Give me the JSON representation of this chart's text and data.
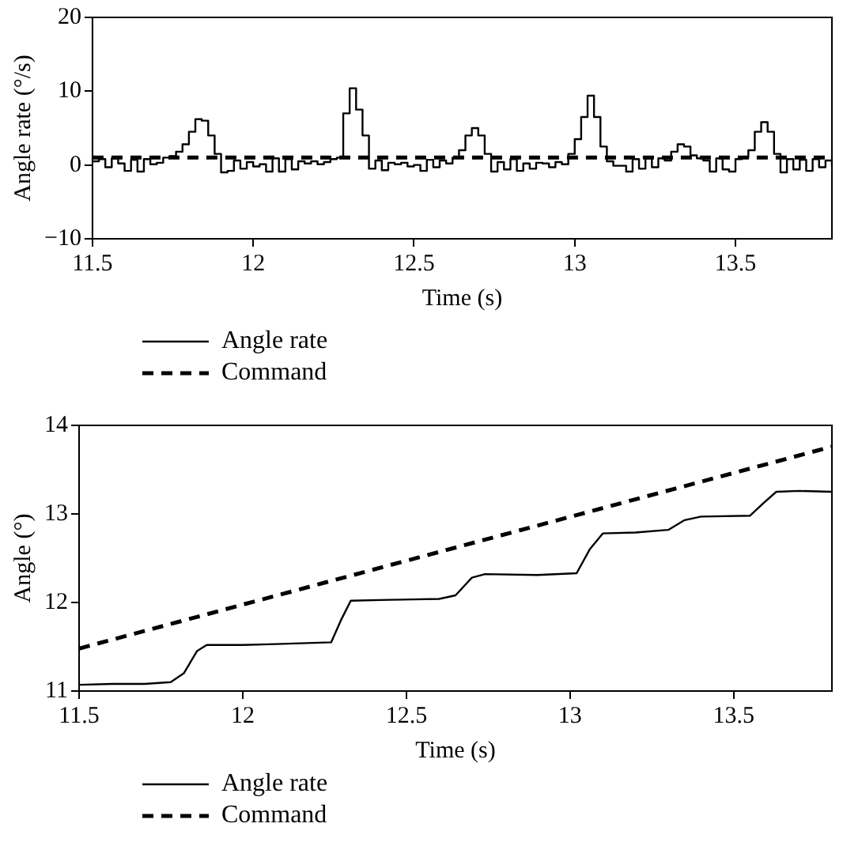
{
  "chart_data": [
    {
      "type": "step",
      "xlabel": "Time (s)",
      "ylabel": "Angle rate (°/s)",
      "xlim": [
        11.5,
        13.8
      ],
      "xticks": [
        11.5,
        12,
        12.5,
        13,
        13.5
      ],
      "ylim": [
        -10,
        20
      ],
      "yticks": [
        {
          "value": -10,
          "label": "−10"
        },
        0,
        10,
        20
      ],
      "grid": false,
      "legend": "bottom",
      "series": [
        {
          "name": "Angle rate",
          "color": "#000000",
          "line_style": "solid",
          "x": [
            11.5,
            11.52,
            11.54,
            11.56,
            11.58,
            11.6,
            11.62,
            11.64,
            11.66,
            11.68,
            11.7,
            11.72,
            11.74,
            11.76,
            11.78,
            11.8,
            11.82,
            11.84,
            11.86,
            11.88,
            11.9,
            11.92,
            11.94,
            11.96,
            11.98,
            12.0,
            12.02,
            12.04,
            12.06,
            12.08,
            12.1,
            12.12,
            12.14,
            12.16,
            12.18,
            12.2,
            12.22,
            12.24,
            12.26,
            12.28,
            12.3,
            12.32,
            12.34,
            12.36,
            12.38,
            12.4,
            12.42,
            12.44,
            12.46,
            12.48,
            12.5,
            12.52,
            12.54,
            12.56,
            12.58,
            12.6,
            12.62,
            12.64,
            12.66,
            12.68,
            12.7,
            12.72,
            12.74,
            12.76,
            12.78,
            12.8,
            12.82,
            12.84,
            12.86,
            12.88,
            12.9,
            12.92,
            12.94,
            12.96,
            12.98,
            13.0,
            13.02,
            13.04,
            13.06,
            13.08,
            13.1,
            13.12,
            13.14,
            13.16,
            13.18,
            13.2,
            13.22,
            13.24,
            13.26,
            13.28,
            13.3,
            13.32,
            13.34,
            13.36,
            13.38,
            13.4,
            13.42,
            13.44,
            13.46,
            13.48,
            13.5,
            13.52,
            13.54,
            13.56,
            13.58,
            13.6,
            13.62,
            13.64,
            13.66,
            13.68,
            13.7,
            13.72,
            13.74,
            13.76,
            13.78,
            13.8
          ],
          "values": [
            0.5,
            0.8,
            -0.3,
            0.9,
            0.2,
            -0.8,
            0.7,
            -0.9,
            0.8,
            0.1,
            0.3,
            1.0,
            1.2,
            1.8,
            2.8,
            4.5,
            6.2,
            6.0,
            4.0,
            1.5,
            -1.0,
            -0.8,
            0.6,
            -0.5,
            0.4,
            -0.2,
            0.1,
            -0.9,
            0.9,
            -0.9,
            0.8,
            -0.6,
            0.5,
            0.2,
            0.5,
            0.1,
            0.4,
            0.8,
            1.0,
            7.0,
            10.4,
            7.5,
            4.0,
            -0.5,
            0.6,
            -0.7,
            0.3,
            0.1,
            0.3,
            -0.2,
            0.0,
            -0.8,
            0.7,
            -0.3,
            0.6,
            0.2,
            1.0,
            2.0,
            4.0,
            5.0,
            4.0,
            1.5,
            -0.9,
            0.4,
            -0.6,
            0.8,
            -0.8,
            0.2,
            -0.5,
            0.3,
            0.2,
            -0.3,
            0.4,
            0.1,
            1.5,
            3.5,
            6.5,
            9.4,
            6.5,
            2.5,
            0.5,
            -0.1,
            -0.1,
            -0.9,
            0.8,
            -0.5,
            0.9,
            -0.3,
            0.9,
            0.6,
            1.8,
            2.8,
            2.5,
            1.3,
            0.9,
            0.6,
            -0.9,
            0.9,
            -0.6,
            -0.9,
            0.8,
            1.0,
            2.0,
            4.5,
            5.8,
            4.5,
            1.5,
            -1.0,
            0.8,
            -0.6,
            0.7,
            -0.8,
            0.8,
            -0.3,
            0.6,
            -0.2
          ]
        },
        {
          "name": "Command",
          "type": "line",
          "color": "#000000",
          "line_style": "dashed",
          "x": [
            11.5,
            13.8
          ],
          "values": [
            1,
            1
          ]
        }
      ]
    },
    {
      "type": "line",
      "xlabel": "Time (s)",
      "ylabel": "Angle (°)",
      "xlim": [
        11.5,
        13.8
      ],
      "xticks": [
        11.5,
        12,
        12.5,
        13,
        13.5
      ],
      "ylim": [
        11,
        14
      ],
      "yticks": [
        11,
        12,
        13,
        14
      ],
      "grid": false,
      "legend": "bottom",
      "series": [
        {
          "name": "Angle rate",
          "color": "#000000",
          "line_style": "solid",
          "x": [
            11.5,
            11.6,
            11.7,
            11.78,
            11.82,
            11.86,
            11.89,
            12.0,
            12.1,
            12.27,
            12.3,
            12.33,
            12.45,
            12.6,
            12.65,
            12.7,
            12.74,
            12.9,
            13.02,
            13.06,
            13.1,
            13.2,
            13.3,
            13.35,
            13.4,
            13.55,
            13.59,
            13.63,
            13.7,
            13.8
          ],
          "values": [
            11.07,
            11.08,
            11.08,
            11.1,
            11.2,
            11.45,
            11.52,
            11.52,
            11.53,
            11.55,
            11.8,
            12.02,
            12.03,
            12.04,
            12.08,
            12.28,
            12.32,
            12.31,
            12.33,
            12.6,
            12.78,
            12.79,
            12.82,
            12.93,
            12.97,
            12.98,
            13.12,
            13.25,
            13.26,
            13.25
          ]
        },
        {
          "name": "Command",
          "color": "#000000",
          "line_style": "dashed",
          "x": [
            11.5,
            13.8
          ],
          "values": [
            11.48,
            13.76
          ]
        }
      ]
    }
  ]
}
